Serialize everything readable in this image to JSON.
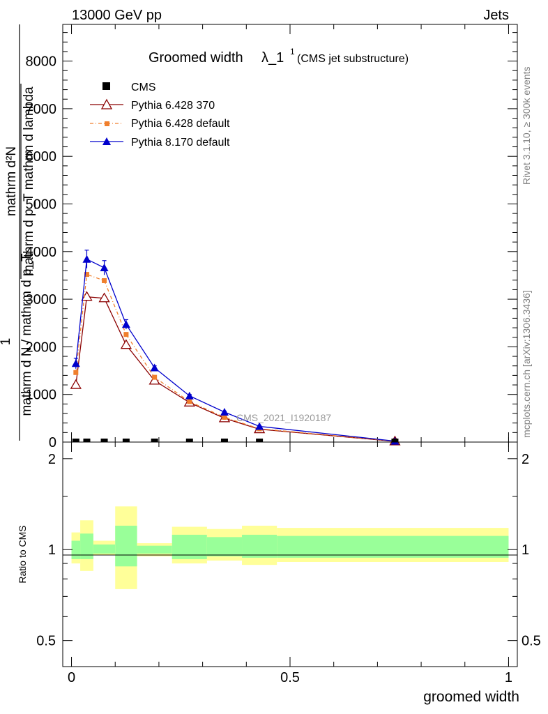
{
  "header": {
    "left": "13000 GeV pp",
    "right": "Jets"
  },
  "side_labels": {
    "rivet": "Rivet 3.1.10, ≥ 300k events",
    "mcplots": "mcplots.cern.ch [arXiv:1306.3436]"
  },
  "chart_data": {
    "type": "line",
    "title_main": "Groomed width",
    "title_lambda": "λ_1",
    "title_super": "1",
    "title_note": "(CMS jet substructure)",
    "watermark": "CMS_2021_I1920187",
    "ylabel_top": {
      "numerator": "mathrm d²N",
      "denominator": "mathrm d p_T mathrm d lambda",
      "left_one": "1",
      "left_denominator": "mathrm d N / mathrm d p_T"
    },
    "xlabel": "groomed width",
    "ratio_ylabel": "Ratio to CMS",
    "xlim": [
      -0.02,
      1.02
    ],
    "ylim": [
      0,
      8770
    ],
    "ratio_ylim": [
      0.41,
      2.27
    ],
    "x_ticks": [
      "0",
      "0.5",
      "1"
    ],
    "x_tick_values": [
      0,
      0.5,
      1
    ],
    "y_ticks": [
      "0",
      "1000",
      "2000",
      "3000",
      "4000",
      "5000",
      "6000",
      "7000",
      "8000"
    ],
    "y_tick_values": [
      0,
      1000,
      2000,
      3000,
      4000,
      5000,
      6000,
      7000,
      8000
    ],
    "ratio_ticks": [
      "0.5",
      "1",
      "2"
    ],
    "ratio_tick_values": [
      0.5,
      1,
      2
    ],
    "legend": [
      "CMS",
      "Pythia 6.428 370",
      "Pythia 6.428 default",
      "Pythia 8.170 default"
    ],
    "legend_placement": "top-left",
    "cms_x": [
      0.01,
      0.035,
      0.075,
      0.125,
      0.19,
      0.27,
      0.35,
      0.43,
      0.74
    ],
    "bins": [
      [
        0.0,
        0.02,
        0.9,
        1.14,
        0.93,
        1.07
      ],
      [
        0.02,
        0.05,
        0.85,
        1.25,
        0.93,
        1.13
      ],
      [
        0.05,
        0.1,
        0.96,
        1.07,
        0.97,
        1.04
      ],
      [
        0.1,
        0.15,
        0.74,
        1.39,
        0.88,
        1.2
      ],
      [
        0.15,
        0.23,
        0.95,
        1.05,
        0.97,
        1.03
      ],
      [
        0.23,
        0.31,
        0.9,
        1.19,
        0.93,
        1.12
      ],
      [
        0.31,
        0.39,
        0.92,
        1.17,
        0.95,
        1.1
      ],
      [
        0.39,
        0.47,
        0.89,
        1.2,
        0.94,
        1.12
      ],
      [
        0.47,
        1.0,
        0.91,
        1.18,
        0.94,
        1.11
      ]
    ],
    "series": [
      {
        "name": "Pythia 6.428 370",
        "color": "#8b0000",
        "marker": "open-triangle",
        "x": [
          0.01,
          0.035,
          0.075,
          0.125,
          0.19,
          0.27,
          0.35,
          0.43,
          0.74
        ],
        "y": [
          1200,
          3050,
          3020,
          2040,
          1290,
          830,
          500,
          270,
          15
        ]
      },
      {
        "name": "Pythia 6.428 default",
        "color": "#f07f2d",
        "marker": "square",
        "x": [
          0.01,
          0.035,
          0.075,
          0.125,
          0.19,
          0.27,
          0.35,
          0.43,
          0.74
        ],
        "y": [
          1460,
          3520,
          3390,
          2260,
          1360,
          850,
          520,
          280,
          20
        ]
      },
      {
        "name": "Pythia 8.170 default",
        "color": "#0000cc",
        "marker": "filled-triangle",
        "x": [
          0.01,
          0.035,
          0.075,
          0.125,
          0.19,
          0.27,
          0.35,
          0.43,
          0.74
        ],
        "y": [
          1650,
          3840,
          3660,
          2470,
          1560,
          970,
          630,
          330,
          20
        ],
        "err": [
          110,
          190,
          150,
          100,
          40,
          30,
          20,
          15,
          5
        ]
      }
    ],
    "colors": {
      "band_outer": "#ffff99",
      "band_inner": "#99ff99",
      "cms_marker": "#000000"
    }
  }
}
